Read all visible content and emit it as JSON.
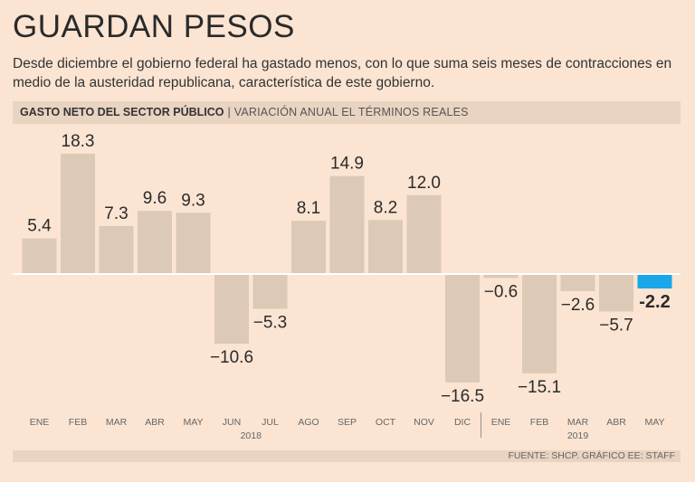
{
  "header": {
    "title": "GUARDAN PESOS",
    "subtitle": "Desde diciembre el gobierno federal ha gastado menos, con lo que suma seis meses de contracciones en medio de la austeridad republicana, característica de este gobierno.",
    "band_bold": "GASTO NETO DEL SECTOR PÚBLICO",
    "band_sep": "|",
    "band_light": "VARIACIÓN ANUAL EL TÉRMINOS REALES"
  },
  "footer": {
    "source": "FUENTE: SHCP. GRÁFICO EE: STAFF"
  },
  "colors": {
    "bar": "#dcc9b6",
    "highlight": "#1aa6e8",
    "baseline": "#ffffff"
  },
  "chart_data": {
    "type": "bar",
    "title": "GASTO NETO DEL SECTOR PÚBLICO",
    "subtitle": "VARIACIÓN ANUAL EL TÉRMINOS REALES",
    "xlabel": "",
    "ylabel": "",
    "ylim": [
      -18,
      19
    ],
    "grid": false,
    "categories": [
      "ENE",
      "FEB",
      "MAR",
      "ABR",
      "MAY",
      "JUN",
      "JUL",
      "AGO",
      "SEP",
      "OCT",
      "NOV",
      "DIC",
      "ENE",
      "FEB",
      "MAR",
      "ABR",
      "MAY"
    ],
    "values": [
      5.4,
      18.3,
      7.3,
      9.6,
      9.3,
      -10.6,
      -5.3,
      8.1,
      14.9,
      8.2,
      12.0,
      -16.5,
      -0.6,
      -15.1,
      -2.6,
      -5.7,
      -2.2
    ],
    "labels": [
      "5.4",
      "18.3",
      "7.3",
      "9.6",
      "9.3",
      "−10.6",
      "−5.3",
      "8.1",
      "14.9",
      "8.2",
      "12.0",
      "−16.5",
      "−0.6",
      "−15.1",
      "−2.6",
      "−5.7",
      "-2.2"
    ],
    "highlight_index": 16,
    "year_groups": [
      {
        "year": "2018",
        "start": 0,
        "end": 11
      },
      {
        "year": "2019",
        "start": 12,
        "end": 16
      }
    ]
  }
}
